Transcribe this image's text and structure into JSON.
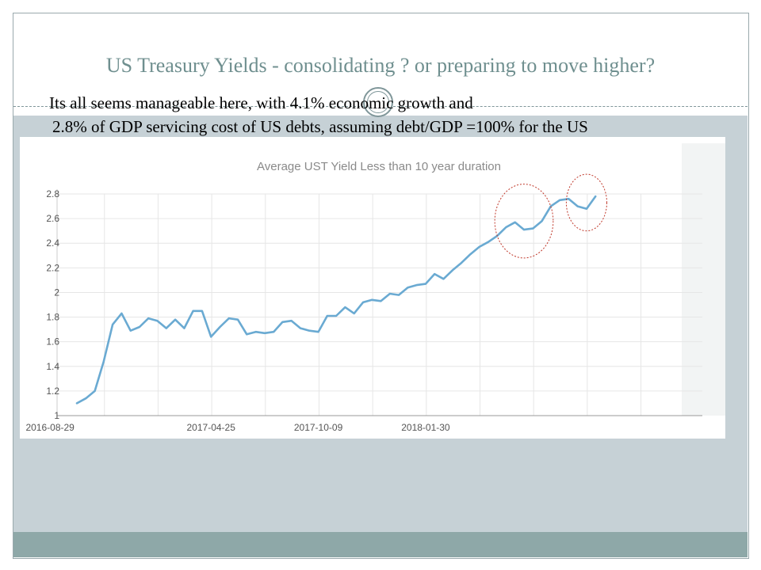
{
  "slide": {
    "title": "US Treasury Yields - consolidating ? or preparing to move higher?",
    "subtitle_line1": "Its all seems manageable here, with 4.1% economic growth and",
    "subtitle_line2": " 2.8% of GDP servicing cost of US debts, assuming debt/GDP  =100% for the US"
  },
  "colors": {
    "accent": "#6f8f8f",
    "band": "#c6d1d6",
    "footer": "#8ea8a8",
    "line": "#6aaad2",
    "grid": "#e6e6e6",
    "highlight": "#c0392b"
  },
  "chart_data": {
    "type": "line",
    "title": "Average UST Yield Less than 10 year duration",
    "xlabel": "",
    "ylabel": "",
    "ylim": [
      1,
      2.8
    ],
    "yticks": [
      1,
      1.2,
      1.4,
      1.6,
      1.8,
      2,
      2.2,
      2.4,
      2.6,
      2.8
    ],
    "xtick_labels": [
      {
        "label": "2016-08-29",
        "index": -3
      },
      {
        "label": "2017-04-25",
        "index": 15
      },
      {
        "label": "2017-10-09",
        "index": 27
      },
      {
        "label": "2018-01-30",
        "index": 39
      }
    ],
    "grid": true,
    "series": [
      {
        "name": "Average UST Yield",
        "values": [
          1.1,
          1.14,
          1.2,
          1.44,
          1.74,
          1.83,
          1.69,
          1.72,
          1.79,
          1.77,
          1.71,
          1.78,
          1.71,
          1.85,
          1.85,
          1.64,
          1.72,
          1.79,
          1.78,
          1.66,
          1.68,
          1.67,
          1.68,
          1.76,
          1.77,
          1.71,
          1.69,
          1.68,
          1.81,
          1.81,
          1.88,
          1.83,
          1.92,
          1.94,
          1.93,
          1.99,
          1.98,
          2.04,
          2.06,
          2.07,
          2.15,
          2.11,
          2.18,
          2.24,
          2.31,
          2.37,
          2.41,
          2.46,
          2.53,
          2.57,
          2.51,
          2.52,
          2.58,
          2.7,
          2.75,
          2.76,
          2.7,
          2.68,
          2.78
        ]
      }
    ],
    "highlights": [
      {
        "name": "first-highlight",
        "from_index": 47,
        "to_index": 53
      },
      {
        "name": "second-highlight",
        "from_index": 55,
        "to_index": 59
      }
    ]
  }
}
